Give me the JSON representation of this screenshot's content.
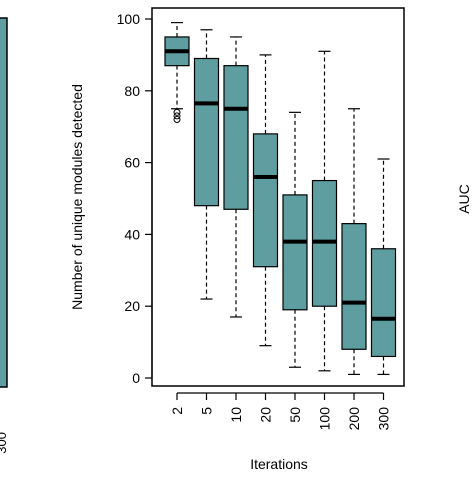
{
  "chart_data": {
    "type": "box",
    "xlabel": "Iterations",
    "ylabel": "Number of unique modules detected",
    "ylim": [
      0,
      100
    ],
    "yticks": [
      0,
      20,
      40,
      60,
      80,
      100
    ],
    "categories": [
      "2",
      "5",
      "10",
      "20",
      "50",
      "100",
      "200",
      "300"
    ],
    "box_color": "#5f9ea0",
    "boxes": [
      {
        "category": "2",
        "whisker_low": 75,
        "q1": 87,
        "median": 91,
        "q3": 95,
        "whisker_high": 99,
        "outliers": [
          72,
          73,
          74
        ]
      },
      {
        "category": "5",
        "whisker_low": 22,
        "q1": 48,
        "median": 76.5,
        "q3": 89,
        "whisker_high": 97,
        "outliers": []
      },
      {
        "category": "10",
        "whisker_low": 17,
        "q1": 47,
        "median": 75,
        "q3": 87,
        "whisker_high": 95,
        "outliers": []
      },
      {
        "category": "20",
        "whisker_low": 9,
        "q1": 31,
        "median": 56,
        "q3": 68,
        "whisker_high": 90,
        "outliers": []
      },
      {
        "category": "50",
        "whisker_low": 3,
        "q1": 19,
        "median": 38,
        "q3": 51,
        "whisker_high": 74,
        "outliers": []
      },
      {
        "category": "100",
        "whisker_low": 2,
        "q1": 20,
        "median": 38,
        "q3": 55,
        "whisker_high": 91,
        "outliers": []
      },
      {
        "category": "200",
        "whisker_low": 1,
        "q1": 8,
        "median": 21,
        "q3": 43,
        "whisker_high": 75,
        "outliers": []
      },
      {
        "category": "300",
        "whisker_low": 1,
        "q1": 6,
        "median": 16.5,
        "q3": 36,
        "whisker_high": 61,
        "outliers": []
      }
    ]
  },
  "neighbor_right": {
    "ylabel": "AUC"
  },
  "neighbor_left": {
    "tick_fragment": "300"
  }
}
